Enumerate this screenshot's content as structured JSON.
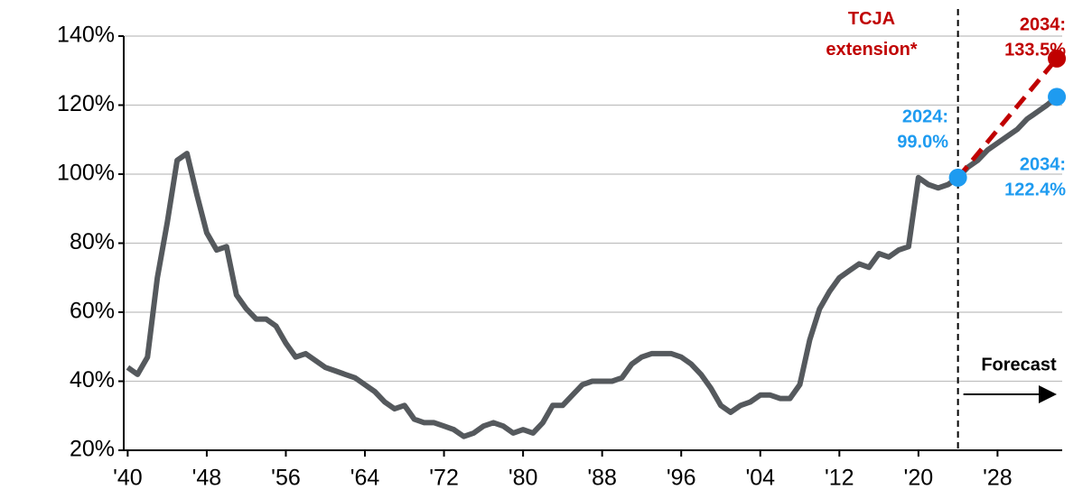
{
  "chart_data": {
    "type": "line",
    "xlim": [
      1939.6,
      2035
    ],
    "ylim": [
      20,
      140
    ],
    "xticks": [
      {
        "value": 1940,
        "label": "'40"
      },
      {
        "value": 1948,
        "label": "'48"
      },
      {
        "value": 1956,
        "label": "'56"
      },
      {
        "value": 1964,
        "label": "'64"
      },
      {
        "value": 1972,
        "label": "'72"
      },
      {
        "value": 1980,
        "label": "'80"
      },
      {
        "value": 1988,
        "label": "'88"
      },
      {
        "value": 1996,
        "label": "'96"
      },
      {
        "value": 2004,
        "label": "'04"
      },
      {
        "value": 2012,
        "label": "'12"
      },
      {
        "value": 2020,
        "label": "'20"
      },
      {
        "value": 2028,
        "label": "'28"
      }
    ],
    "yticks": [
      {
        "value": 20,
        "label": "20%"
      },
      {
        "value": 40,
        "label": "40%"
      },
      {
        "value": 60,
        "label": "60%"
      },
      {
        "value": 80,
        "label": "80%"
      },
      {
        "value": 100,
        "label": "100%"
      },
      {
        "value": 120,
        "label": "120%"
      },
      {
        "value": 140,
        "label": "140%"
      }
    ],
    "grid": true,
    "series": [
      {
        "color": "#55595d",
        "dashed": false,
        "x": [
          1940,
          1941,
          1942,
          1943,
          1944,
          1945,
          1946,
          1947,
          1948,
          1949,
          1950,
          1951,
          1952,
          1953,
          1954,
          1955,
          1956,
          1957,
          1958,
          1959,
          1960,
          1961,
          1962,
          1963,
          1964,
          1965,
          1966,
          1967,
          1968,
          1969,
          1970,
          1971,
          1972,
          1973,
          1974,
          1975,
          1976,
          1977,
          1978,
          1979,
          1980,
          1981,
          1982,
          1983,
          1984,
          1985,
          1986,
          1987,
          1988,
          1989,
          1990,
          1991,
          1992,
          1993,
          1994,
          1995,
          1996,
          1997,
          1998,
          1999,
          2000,
          2001,
          2002,
          2003,
          2004,
          2005,
          2006,
          2007,
          2008,
          2009,
          2010,
          2011,
          2012,
          2013,
          2014,
          2015,
          2016,
          2017,
          2018,
          2019,
          2020,
          2021,
          2022,
          2023,
          2024,
          2025,
          2026,
          2027,
          2028,
          2029,
          2030,
          2031,
          2032,
          2033,
          2034
        ],
        "values": [
          44,
          42,
          47,
          70,
          86,
          104,
          106,
          94,
          83,
          78,
          79,
          65,
          61,
          58,
          58,
          56,
          51,
          47,
          48,
          46,
          44,
          43,
          42,
          41,
          39,
          37,
          34,
          32,
          33,
          29,
          28,
          28,
          27,
          26,
          24,
          25,
          27,
          28,
          27,
          25,
          26,
          25,
          28,
          33,
          33,
          36,
          39,
          40,
          40,
          40,
          41,
          45,
          47,
          48,
          48,
          48,
          47,
          45,
          42,
          38,
          33,
          31,
          33,
          34,
          36,
          36,
          35,
          35,
          39,
          52,
          61,
          66,
          70,
          72,
          74,
          73,
          77,
          76,
          78,
          79,
          99,
          97,
          96,
          97,
          99.0,
          102,
          104,
          107,
          109,
          111,
          113,
          116,
          118,
          120,
          122.4
        ]
      },
      {
        "name": "TCJA extension*",
        "color": "#c00000",
        "dashed": true,
        "x": [
          2024,
          2034
        ],
        "values": [
          99.0,
          133.5
        ]
      }
    ],
    "forecast_start": 2024,
    "forecast_label": "Forecast",
    "annotations": [
      {
        "x": 2024,
        "value": 99.0,
        "label": [
          "2024:",
          "99.0%"
        ],
        "color": "#1e9bf0"
      },
      {
        "x": 2034,
        "value": 122.4,
        "label": [
          "2034:",
          "122.4%"
        ],
        "color": "#1e9bf0"
      },
      {
        "x": 2034,
        "value": 133.5,
        "label": [
          "2034:",
          "133.5%"
        ],
        "color": "#c00000"
      }
    ]
  }
}
